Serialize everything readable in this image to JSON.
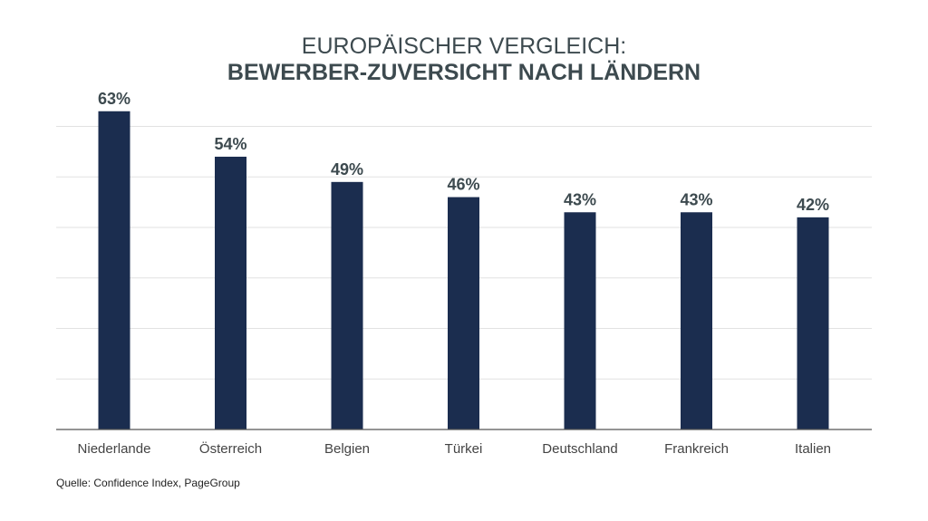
{
  "chart_data": {
    "type": "bar",
    "title": "EUROPÄISCHER VERGLEICH:",
    "subtitle": "BEWERBER-ZUVERSICHT NACH LÄNDERN",
    "categories": [
      "Niederlande",
      "Österreich",
      "Belgien",
      "Türkei",
      "Deutschland",
      "Frankreich",
      "Italien"
    ],
    "values": [
      63,
      54,
      49,
      46,
      43,
      43,
      42
    ],
    "labels": [
      "63%",
      "54%",
      "49%",
      "46%",
      "43%",
      "43%",
      "42%"
    ],
    "xlabel": "",
    "ylabel": "",
    "ylim": [
      0,
      63
    ],
    "gridlines": [
      10,
      20,
      30,
      40,
      50,
      60
    ],
    "grid": true,
    "bar_color": "#1b2d4f",
    "label_color": "#3d4a4f"
  },
  "source": "Quelle: Confidence Index, PageGroup"
}
